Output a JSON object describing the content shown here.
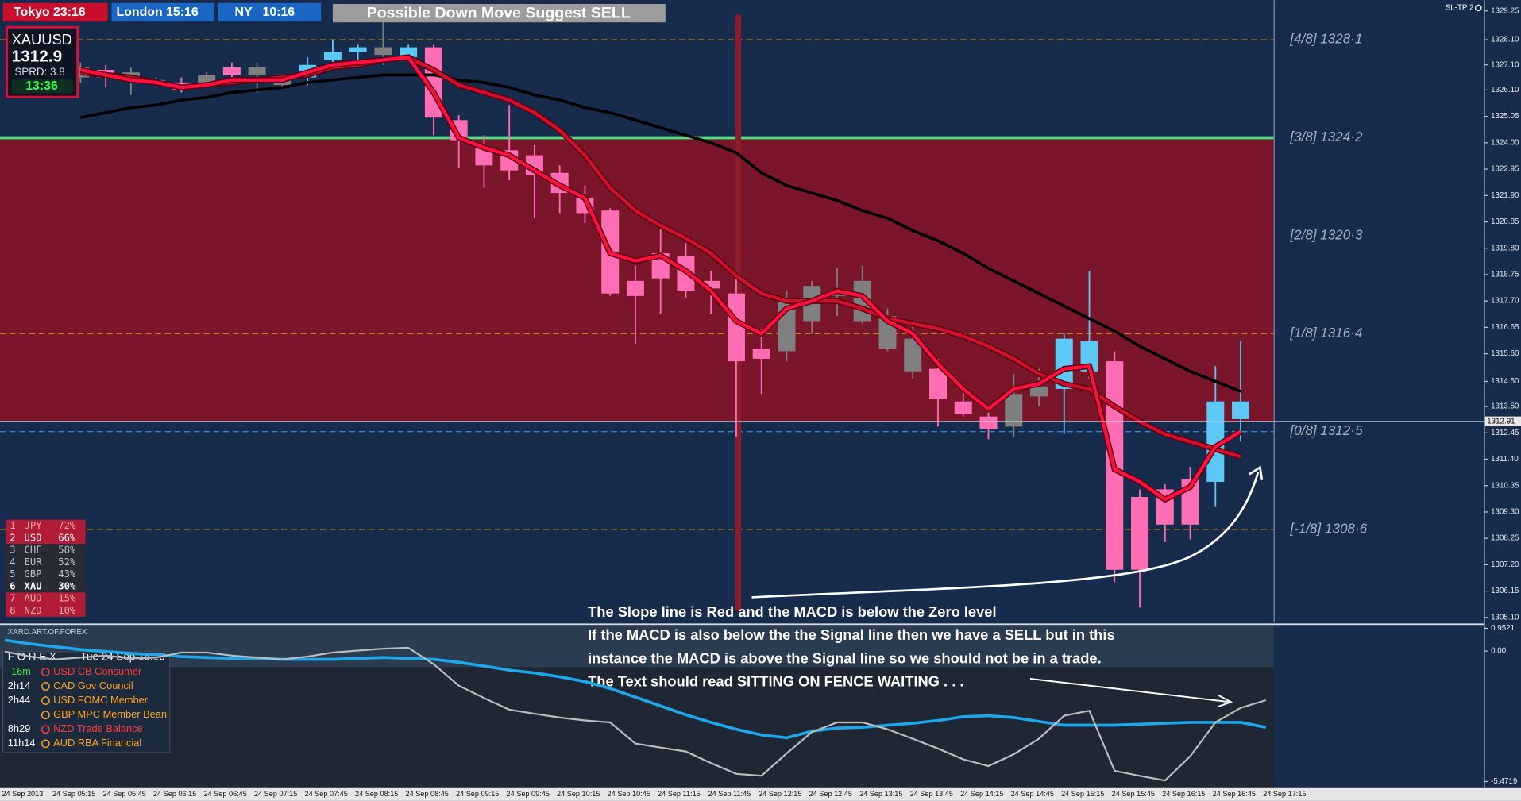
{
  "header": {
    "sessions": [
      "Tokyo 23:16",
      "London 15:16",
      "NY   10:16"
    ],
    "signal": "Possible Down Move Suggest SELL",
    "indicator": "SL-TP 2"
  },
  "symbol_box": {
    "symbol": "XAUUSD",
    "price": 1312.9,
    "spread": "SPRD: 3.8",
    "timer": "13:36"
  },
  "currency_strength": [
    [
      "1",
      "JPY",
      "72%"
    ],
    [
      "2",
      "USD",
      "66%"
    ],
    [
      "3",
      "CHF",
      "58%"
    ],
    [
      "4",
      "EUR",
      "52%"
    ],
    [
      "5",
      "GBP",
      "43%"
    ],
    [
      "6",
      "XAU",
      "30%"
    ],
    [
      "7",
      "AUD",
      "15%"
    ],
    [
      "8",
      "NZD",
      "10%"
    ]
  ],
  "news": {
    "title": "F O R E X",
    "date": "Tue 24 Sep 15:16",
    "rows": [
      {
        "time": "-16m",
        "event": "USD CB Consumer"
      },
      {
        "time": "2h14",
        "event": "CAD Gov Council"
      },
      {
        "time": "2h44",
        "event": "USD FOMC Member"
      },
      {
        "event": "GBP MPC Member Bean"
      },
      {
        "time": "8h29",
        "event": "NZD Trade Balance"
      },
      {
        "time": "11h14",
        "event": "AUD RBA Financial"
      }
    ]
  },
  "annotation": [
    "The Slope line is Red and the MACD is below the Zero level",
    "If the MACD is also below the the Signal line then we have a SELL but in this",
    "instance the MACD is above the Signal line so we should not be in a trade.",
    "The Text should read SITTING ON FENCE WAITING . . ."
  ],
  "chart_data": [
    {
      "type": "candlestick",
      "ylim": [
        1304.9,
        1329.68
      ],
      "yticks": [
        1329.25,
        {
          "value": 1328.1,
          "label": "1328.10"
        },
        {
          "value": 1327.1,
          "label": "1327.10"
        },
        {
          "value": 1326.1,
          "label": "1326.10"
        },
        1325.05,
        {
          "value": 1324,
          "label": "1324.00"
        },
        1322.95,
        {
          "value": 1321.9,
          "label": "1321.90"
        },
        1320.85,
        {
          "value": 1319.8,
          "label": "1319.80"
        },
        1318.75,
        {
          "value": 1317.7,
          "label": "1317.70"
        },
        1316.65,
        {
          "value": 1315.6,
          "label": "1315.60"
        },
        {
          "value": 1314.5,
          "label": "1314.50"
        },
        {
          "value": 1313.5,
          "label": "1313.50"
        },
        1312.45,
        {
          "value": 1311.4,
          "label": "1311.40"
        },
        1310.35,
        {
          "value": 1309.3,
          "label": "1309.30"
        },
        1308.25,
        {
          "value": 1307.2,
          "label": "1307.20"
        },
        1306.15,
        {
          "value": 1305.1,
          "label": "1305.10"
        }
      ],
      "current_price": 1312.91,
      "open": [
        1326.6,
        1326.9,
        1326.6,
        1326.4,
        1326.4,
        1326.4,
        1327.0,
        1326.7,
        1326.6,
        1326.6,
        1327.3,
        1327.6,
        1327.5,
        1327.4,
        1327.8,
        1324.9,
        1323.8,
        1323.7,
        1323.5,
        1322.8,
        1321.8,
        1321.3,
        1318.5,
        1319.6,
        1319.5,
        1318.5,
        1318.0,
        1315.8,
        1315.7,
        1316.9,
        1317.9,
        1318.5,
        1317.1,
        1316.2,
        1315.0,
        1313.7,
        1313.1,
        1312.7,
        1313.9,
        1314.2,
        1314.9,
        1315.3,
        1309.9,
        1310.2,
        1310.6,
        1310.5,
        1313.0
      ],
      "high": [
        1327.2,
        1327.1,
        1327.0,
        1326.6,
        1326.6,
        1326.8,
        1327.2,
        1327.2,
        1326.7,
        1327.4,
        1328.1,
        1327.9,
        1328.8,
        1327.9,
        1327.9,
        1325.1,
        1324.3,
        1325.5,
        1323.9,
        1323.1,
        1322.3,
        1321.4,
        1319.1,
        1320.8,
        1320.0,
        1318.9,
        1318.6,
        1316.6,
        1318.1,
        1318.5,
        1319.0,
        1319.1,
        1317.4,
        1316.9,
        1315.4,
        1314.2,
        1313.5,
        1314.8,
        1315.0,
        1316.4,
        1318.9,
        1315.7,
        1310.2,
        1310.4,
        1311.1,
        1315.1,
        1316.1
      ],
      "low": [
        1326.4,
        1326.2,
        1325.9,
        1326.3,
        1326.0,
        1326.3,
        1326.4,
        1326.0,
        1326.2,
        1326.3,
        1327.1,
        1327.2,
        1327.1,
        1327.3,
        1324.3,
        1323.0,
        1322.2,
        1322.5,
        1321.0,
        1321.2,
        1320.8,
        1317.9,
        1316.0,
        1317.2,
        1317.8,
        1317.2,
        1312.3,
        1314.0,
        1315.3,
        1316.4,
        1317.1,
        1316.8,
        1315.7,
        1314.6,
        1312.7,
        1313.1,
        1312.2,
        1312.3,
        1313.5,
        1312.4,
        1314.6,
        1306.5,
        1305.5,
        1308.1,
        1308.2,
        1309.5,
        1312.1
      ],
      "close": [
        1327.0,
        1326.6,
        1326.8,
        1326.5,
        1326.1,
        1326.7,
        1326.7,
        1327.0,
        1326.3,
        1327.1,
        1327.6,
        1327.8,
        1327.8,
        1327.8,
        1325.0,
        1324.1,
        1323.1,
        1322.9,
        1322.7,
        1322.0,
        1321.2,
        1318.0,
        1317.9,
        1318.6,
        1318.1,
        1318.2,
        1315.3,
        1315.4,
        1317.7,
        1318.3,
        1318.1,
        1316.9,
        1315.8,
        1314.9,
        1313.8,
        1313.2,
        1312.6,
        1314.0,
        1314.3,
        1316.2,
        1316.1,
        1307.0,
        1307.0,
        1308.8,
        1308.8,
        1313.7,
        1313.7
      ],
      "style": [
        "n",
        "d",
        "n",
        "n",
        "d",
        "n",
        "d",
        "n",
        "n",
        "u",
        "u",
        "u",
        "n",
        "u",
        "d",
        "d",
        "d",
        "d",
        "d",
        "d",
        "d",
        "d",
        "d",
        "d",
        "d",
        "d",
        "d",
        "d",
        "n",
        "n",
        "n",
        "n",
        "n",
        "n",
        "d",
        "d",
        "d",
        "n",
        "n",
        "u",
        "u",
        "d",
        "d",
        "d",
        "d",
        "u",
        "u"
      ],
      "colors": {
        "u": "#5cc8f5",
        "d": "#ff6eb4",
        "n": "#7f7f7f"
      },
      "lines": [
        {
          "color": "#000000",
          "values": [
            1325.0,
            1325.2,
            1325.4,
            1325.5,
            1325.7,
            1325.8,
            1326.0,
            1326.1,
            1326.2,
            1326.4,
            1326.5,
            1326.6,
            1326.7,
            1326.7,
            1326.7,
            1326.5,
            1326.4,
            1326.2,
            1325.9,
            1325.7,
            1325.4,
            1325.2,
            1324.9,
            1324.6,
            1324.3,
            1324.0,
            1323.6,
            1322.8,
            1322.3,
            1322.0,
            1321.7,
            1321.3,
            1321.0,
            1320.5,
            1320.1,
            1319.6,
            1319.0,
            1318.5,
            1318.0,
            1317.5,
            1317.0,
            1316.5,
            1315.9,
            1315.4,
            1314.9,
            1314.5,
            1314.1
          ]
        },
        {
          "color": "#d0102c",
          "values": [
            1326.8,
            1326.7,
            1326.6,
            1326.4,
            1326.2,
            1326.3,
            1326.4,
            1326.5,
            1326.6,
            1326.7,
            1327.0,
            1327.1,
            1327.3,
            1327.4,
            1326.9,
            1326.3,
            1326.0,
            1325.7,
            1325.2,
            1324.5,
            1323.5,
            1322.2,
            1321.3,
            1320.7,
            1320.2,
            1319.6,
            1318.7,
            1318.0,
            1317.7,
            1317.7,
            1317.7,
            1317.4,
            1317.0,
            1316.8,
            1316.6,
            1316.3,
            1315.9,
            1315.4,
            1314.8,
            1314.4,
            1314.2,
            1313.5,
            1312.9,
            1312.4,
            1312.1,
            1311.8,
            1311.5
          ]
        },
        {
          "color": "#ff1040",
          "values": [
            1326.9,
            1326.7,
            1326.5,
            1326.4,
            1326.2,
            1326.3,
            1326.5,
            1326.5,
            1326.5,
            1326.8,
            1327.1,
            1327.2,
            1327.3,
            1327.4,
            1326.0,
            1324.2,
            1323.8,
            1323.5,
            1322.9,
            1322.3,
            1321.8,
            1319.6,
            1319.3,
            1319.5,
            1318.9,
            1318.1,
            1316.9,
            1316.4,
            1317.4,
            1317.7,
            1318.1,
            1317.9,
            1316.9,
            1316.4,
            1315.2,
            1314.2,
            1313.4,
            1314.2,
            1314.4,
            1315.0,
            1315.1,
            1311.0,
            1310.5,
            1309.8,
            1310.3,
            1311.9,
            1312.5
          ]
        }
      ],
      "levels": [
        {
          "value": 1328.1,
          "label": "[4/8] 1328·1",
          "color": "#c8961e"
        },
        {
          "value": 1324.2,
          "label": "[3/8] 1324·2",
          "color": "#4ee08a",
          "zone": "#7b1529"
        },
        {
          "value": 1320.3,
          "label": "[2/8] 1320·3"
        },
        {
          "value": 1316.4,
          "label": "[1/8] 1316·4",
          "color": "#c8961e"
        },
        {
          "value": 1312.5,
          "label": "[0/8] 1312·5",
          "color": "#3c8ce0"
        },
        {
          "value": 1308.6,
          "label": "[-1/8] 1308·6",
          "color": "#c8961e"
        }
      ],
      "x_labels": [
        "24 Sep 2013",
        "24 Sep 05:15",
        "24 Sep 05:45",
        "24 Sep 06:15",
        "24 Sep 06:45",
        "24 Sep 07:15",
        "24 Sep 07:45",
        "24 Sep 08:15",
        "24 Sep 08:45",
        "24 Sep 09:15",
        "24 Sep 09:45",
        "24 Sep 10:15",
        "24 Sep 10:45",
        "24 Sep 11:15",
        "24 Sep 11:45",
        "24 Sep 12:15",
        "24 Sep 12:45",
        "24 Sep 13:15",
        "24 Sep 13:45",
        "24 Sep 14:15",
        "24 Sep 14:45",
        "24 Sep 15:15",
        "24 Sep 15:45",
        "24 Sep 16:15",
        "24 Sep 16:45",
        "24 Sep 17:15"
      ]
    },
    {
      "type": "line",
      "title": "XARD.ART.OF.FOREX",
      "ylim": [
        -5.4719,
        0.9521
      ],
      "yticks": [
        0.9521,
        {
          "value": 0,
          "label": "0.00"
        },
        -5.4719
      ],
      "series": [
        {
          "color": "#1ea8ec",
          "values": [
            0.46,
            0.3,
            0.18,
            0.06,
            -0.02,
            -0.1,
            -0.15,
            -0.23,
            -0.27,
            -0.31,
            -0.31,
            -0.35,
            -0.35,
            -0.35,
            -0.31,
            -0.27,
            -0.31,
            -0.35,
            -0.47,
            -0.63,
            -0.8,
            -0.92,
            -1.08,
            -1.28,
            -1.57,
            -1.93,
            -2.3,
            -2.67,
            -2.99,
            -3.28,
            -3.52,
            -3.64,
            -3.36,
            -3.23,
            -3.2,
            -3.11,
            -3.03,
            -2.91,
            -2.75,
            -2.71,
            -2.79,
            -2.95,
            -3.11,
            -3.11,
            -3.11,
            -3.07,
            -3.03,
            -2.99,
            -2.99,
            -2.99,
            -3.2
          ]
        },
        {
          "color": "#bdbdbd",
          "values": [
            -0.02,
            -0.23,
            -0.35,
            -0.27,
            -0.19,
            -0.31,
            -0.27,
            -0.06,
            -0.06,
            -0.19,
            -0.27,
            -0.35,
            -0.23,
            -0.06,
            0.02,
            0.1,
            0.14,
            -0.55,
            -1.45,
            -1.97,
            -2.46,
            -2.63,
            -2.79,
            -2.91,
            -2.99,
            -3.88,
            -4.05,
            -4.21,
            -4.7,
            -5.15,
            -5.23,
            -4.29,
            -3.4,
            -2.99,
            -2.99,
            -3.28,
            -3.68,
            -4.09,
            -4.54,
            -4.82,
            -4.33,
            -3.68,
            -2.71,
            -2.5,
            -5.02,
            -5.23,
            -5.43,
            -4.41,
            -2.99,
            -2.38,
            -2.06
          ]
        }
      ]
    }
  ]
}
